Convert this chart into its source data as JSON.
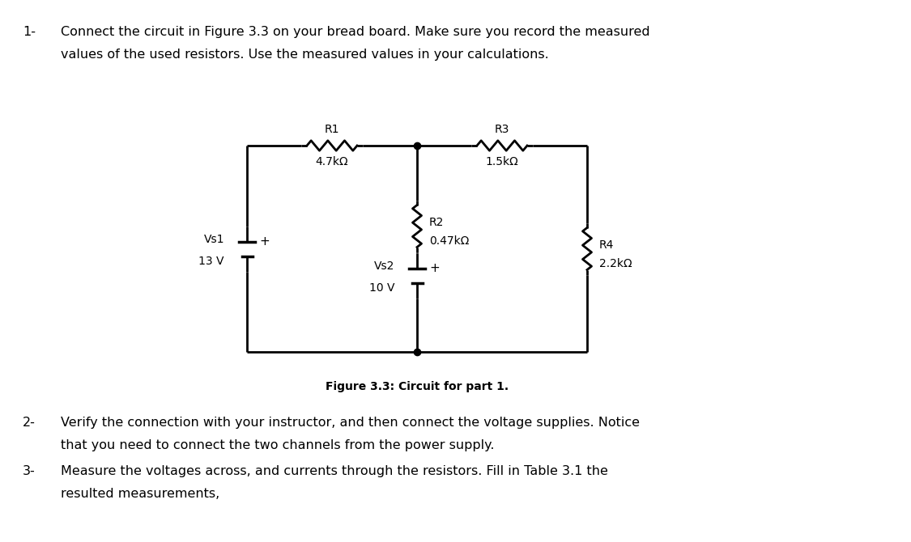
{
  "bg_color": "#ffffff",
  "text_color": "#000000",
  "line_color": "#000000",
  "fig_width": 11.25,
  "fig_height": 6.7,
  "text1_prefix": "1-",
  "text1_line1": "Connect the circuit in Figure 3.3 on your bread board. Make sure you record the measured",
  "text1_line2": "values of the used resistors. Use the measured values in your calculations.",
  "text2_prefix": "2-",
  "text2_line1": "Verify the connection with your instructor, and then connect the voltage supplies. Notice",
  "text2_line2": "that you need to connect the two channels from the power supply.",
  "text3_prefix": "3-",
  "text3_line1": "Measure the voltages across, and currents through the resistors. Fill in Table 3.1 the",
  "text3_line2": "resulted measurements,",
  "fig_caption": "Figure 3.3: Circuit for part 1.",
  "R1_label": "R1",
  "R1_val": "4.7kΩ",
  "R2_label": "R2",
  "R2_val": "0.47kΩ",
  "R3_label": "R3",
  "R3_val": "1.5kΩ",
  "R4_label": "R4",
  "R4_val": "2.2kΩ",
  "Vs1_label": "Vs1",
  "Vs1_val": "13 V",
  "Vs2_label": "Vs2",
  "Vs2_val": "10 V"
}
